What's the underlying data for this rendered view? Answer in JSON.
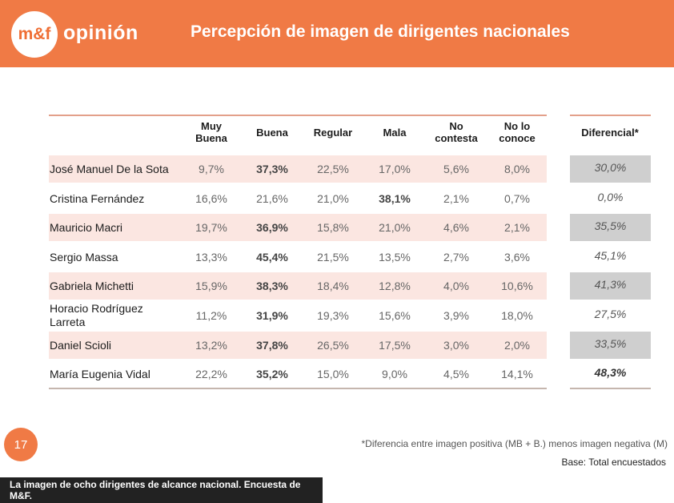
{
  "header": {
    "logo_text": "m&f",
    "brand_word": "opinión",
    "title": "Percepción de imagen de dirigentes nacionales"
  },
  "chart_data": {
    "type": "table",
    "columns": [
      "Muy Buena",
      "Buena",
      "Regular",
      "Mala",
      "No contesta",
      "No lo conoce"
    ],
    "diff_header": "Diferencial*",
    "rows": [
      {
        "name": "José Manuel De la Sota",
        "values": [
          "9,7%",
          "37,3%",
          "22,5%",
          "17,0%",
          "5,6%",
          "8,0%"
        ],
        "bold": 1,
        "diff": "30,0%",
        "diff_bold": false
      },
      {
        "name": "Cristina Fernández",
        "values": [
          "16,6%",
          "21,6%",
          "21,0%",
          "38,1%",
          "2,1%",
          "0,7%"
        ],
        "bold": 3,
        "diff": "0,0%",
        "diff_bold": false
      },
      {
        "name": "Mauricio Macri",
        "values": [
          "19,7%",
          "36,9%",
          "15,8%",
          "21,0%",
          "4,6%",
          "2,1%"
        ],
        "bold": 1,
        "diff": "35,5%",
        "diff_bold": false
      },
      {
        "name": "Sergio Massa",
        "values": [
          "13,3%",
          "45,4%",
          "21,5%",
          "13,5%",
          "2,7%",
          "3,6%"
        ],
        "bold": 1,
        "diff": "45,1%",
        "diff_bold": false
      },
      {
        "name": "Gabriela Michetti",
        "values": [
          "15,9%",
          "38,3%",
          "18,4%",
          "12,8%",
          "4,0%",
          "10,6%"
        ],
        "bold": 1,
        "diff": "41,3%",
        "diff_bold": false
      },
      {
        "name": "Horacio Rodríguez Larreta",
        "values": [
          "11,2%",
          "31,9%",
          "19,3%",
          "15,6%",
          "3,9%",
          "18,0%"
        ],
        "bold": 1,
        "diff": "27,5%",
        "diff_bold": false
      },
      {
        "name": "Daniel Scioli",
        "values": [
          "13,2%",
          "37,8%",
          "26,5%",
          "17,5%",
          "3,0%",
          "2,0%"
        ],
        "bold": 1,
        "diff": "33,5%",
        "diff_bold": false
      },
      {
        "name": "María Eugenia Vidal",
        "values": [
          "22,2%",
          "35,2%",
          "15,0%",
          "9,0%",
          "4,5%",
          "14,1%"
        ],
        "bold": 1,
        "diff": "48,3%",
        "diff_bold": true
      }
    ]
  },
  "footer": {
    "page_number": "17",
    "footnote": "*Diferencia entre imagen positiva (MB + B.) menos imagen negativa (M)",
    "base": "Base: Total encuestados",
    "caption": "La imagen de ocho dirigentes de alcance nacional. Encuesta de M&F."
  },
  "colors": {
    "accent": "#f07a45",
    "row_shade": "#fbe6e1",
    "diff_shade": "#cfcfcf"
  }
}
